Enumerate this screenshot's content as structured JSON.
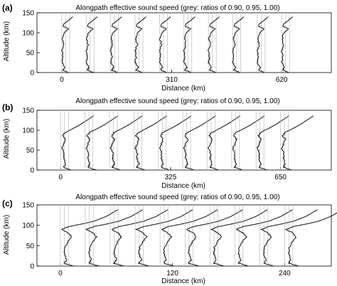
{
  "figure": {
    "panels": [
      {
        "letter": "(a)"
      },
      {
        "letter": "(b)"
      },
      {
        "letter": "(c)"
      }
    ]
  },
  "chart_data": [
    {
      "type": "line",
      "title": "Alongpath effective sound speed (grey: ratios of 0.90, 0.95, 1.00)",
      "xlabel": "Distance (km)",
      "ylabel": "Altitude (km)",
      "xlim": [
        -70,
        760
      ],
      "ylim": [
        0,
        150
      ],
      "xticks": [
        0,
        310,
        620
      ],
      "yticks": [
        0,
        50,
        100,
        150
      ],
      "profile_count": 10,
      "profile_spacing_km": 68.9,
      "reference_lines": [
        "0.90",
        "0.95",
        "1.00"
      ],
      "profile_shape": "weak",
      "line_color": "#222222",
      "reference_color": "#bbbbbb"
    },
    {
      "type": "line",
      "title": "Alongpath effective sound speed (grey: ratios of 0.90, 0.95, 1.00)",
      "xlabel": "Distance (km)",
      "ylabel": "Altitude (km)",
      "xlim": [
        -70,
        800
      ],
      "ylim": [
        0,
        150
      ],
      "xticks": [
        0,
        325,
        650
      ],
      "yticks": [
        0,
        50,
        100,
        150
      ],
      "profile_count": 10,
      "profile_spacing_km": 72.2,
      "reference_lines": [
        "0.90",
        "0.95",
        "1.00"
      ],
      "profile_shape": "medium",
      "line_color": "#222222",
      "reference_color": "#bbbbbb"
    },
    {
      "type": "line",
      "title": "Alongpath effective sound speed (grey: ratios of 0.90, 0.95, 1.00)",
      "xlabel": "Distance (km)",
      "ylabel": "Altitude (km)",
      "xlim": [
        -25,
        290
      ],
      "ylim": [
        0,
        150
      ],
      "xticks": [
        0,
        120,
        240
      ],
      "yticks": [
        0,
        50,
        100,
        150
      ],
      "profile_count": 10,
      "profile_spacing_km": 26.7,
      "reference_lines": [
        "0.90",
        "0.95",
        "1.00"
      ],
      "profile_shape": "strong",
      "line_color": "#222222",
      "reference_color": "#bbbbbb"
    }
  ]
}
